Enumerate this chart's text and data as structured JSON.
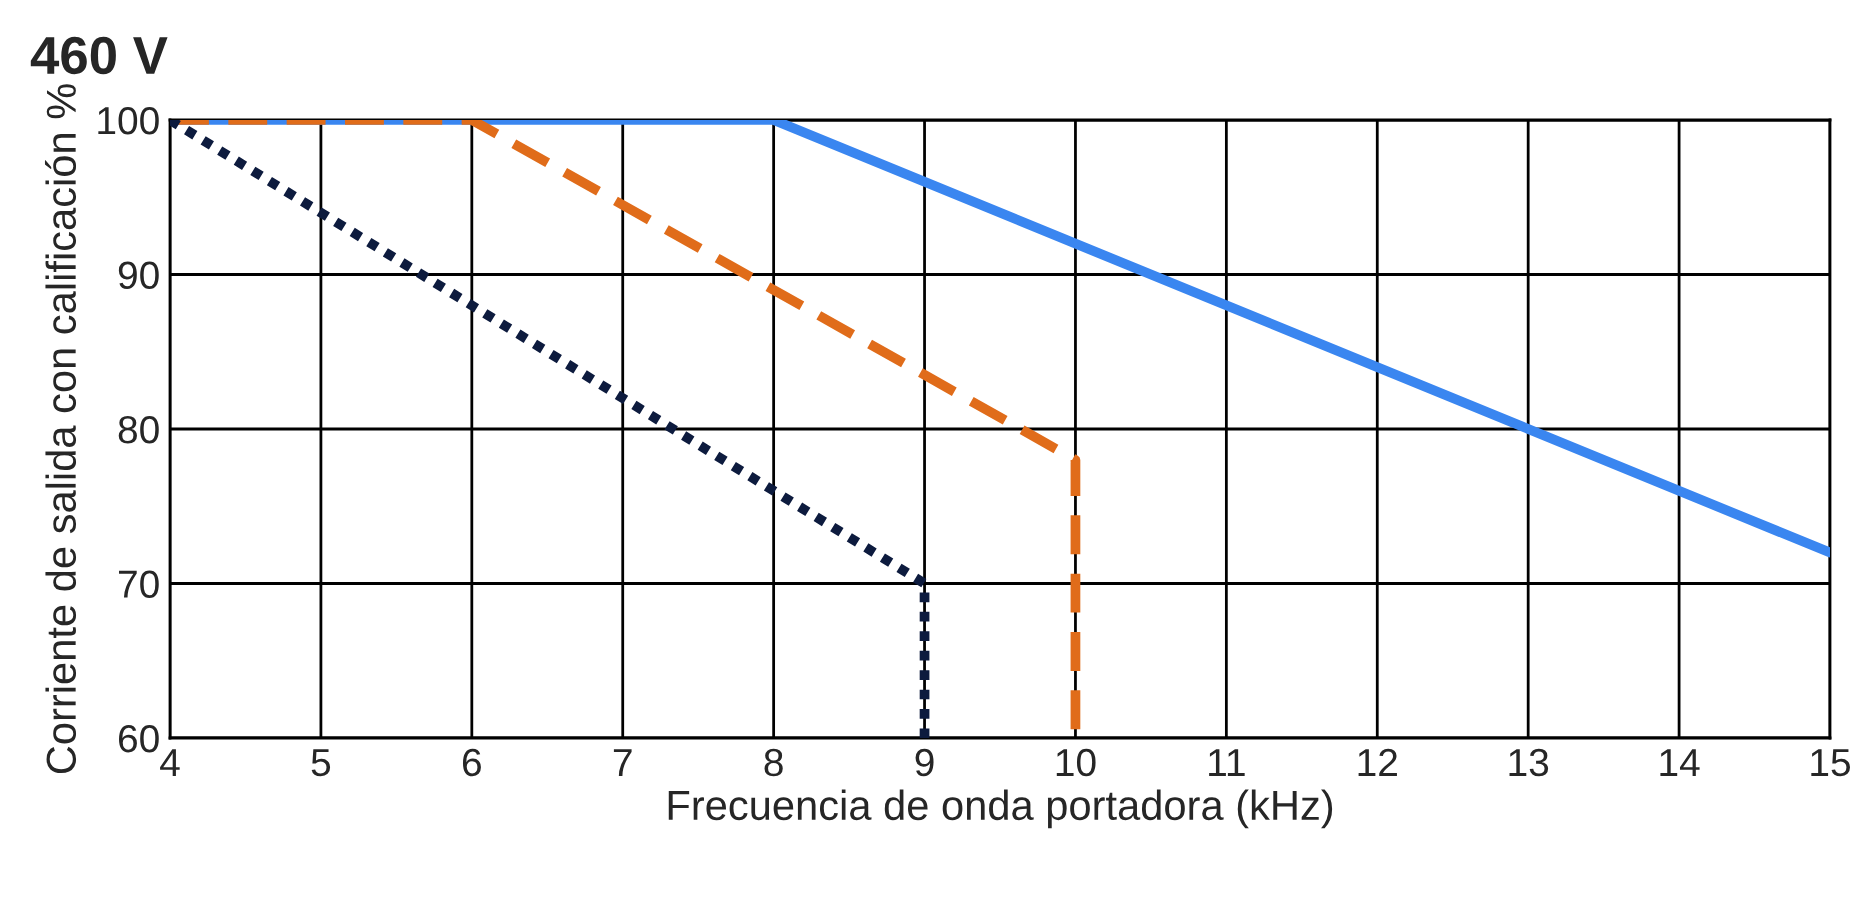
{
  "chart_data": {
    "type": "line",
    "title": "460 V",
    "xlabel": "Frecuencia de onda portadora (kHz)",
    "ylabel": "Corriente de salida con calificación %",
    "xlim": [
      4,
      15
    ],
    "xticks": [
      4,
      5,
      6,
      7,
      8,
      9,
      10,
      11,
      12,
      13,
      14,
      15
    ],
    "ylim": [
      60,
      100
    ],
    "yticks": [
      60,
      70,
      80,
      90,
      100
    ],
    "grid": true,
    "marker": "none",
    "series": [
      {
        "color": "#3a86f0",
        "line_style": "solid",
        "x": [
          4,
          8,
          13,
          15
        ],
        "values": [
          100,
          100,
          80,
          72
        ]
      },
      {
        "color": "#e06c1a",
        "line_style": "dashed",
        "x": [
          4,
          6,
          10,
          10
        ],
        "values": [
          100,
          100,
          78,
          60
        ]
      },
      {
        "color": "#0d1b3e",
        "line_style": "dotted",
        "x": [
          4,
          9,
          9
        ],
        "values": [
          100,
          70,
          60
        ]
      }
    ]
  }
}
